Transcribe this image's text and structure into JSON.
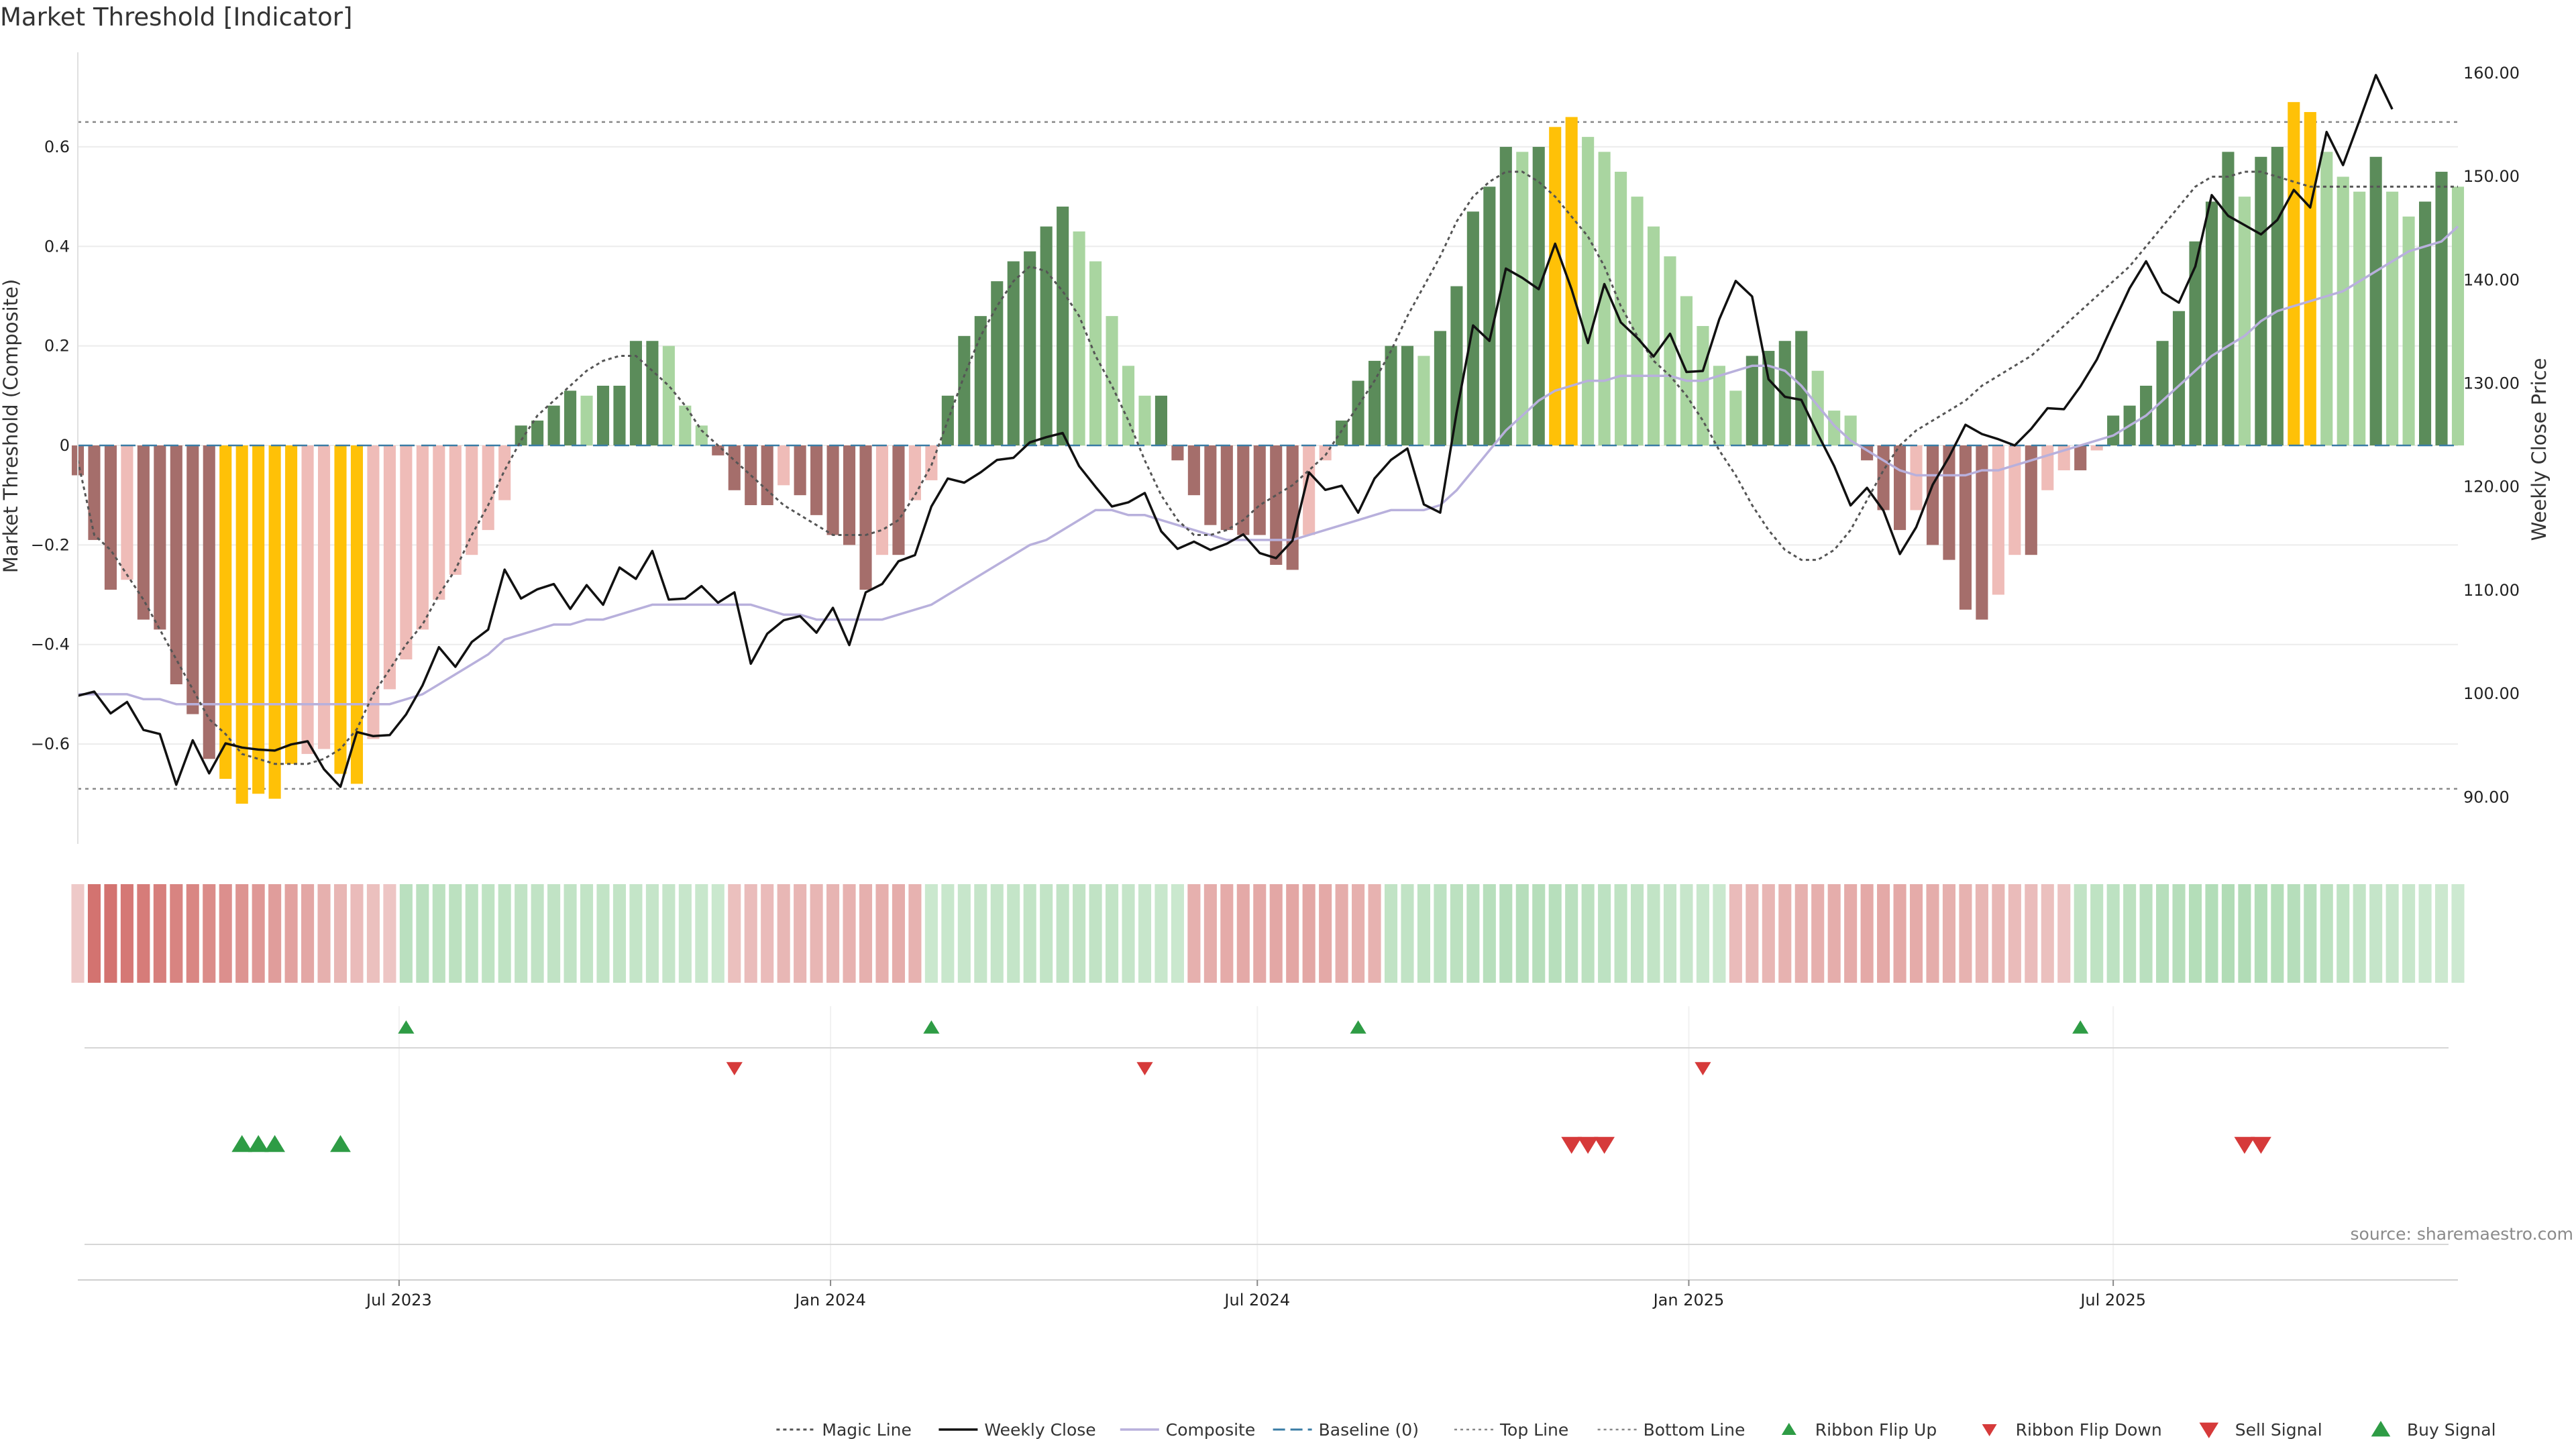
{
  "title": "Market Threshold [Indicator]",
  "source": "source: sharemaestro.com",
  "colors": {
    "strong_pos": "#5b8c5a",
    "weak_pos": "#a9d5a0",
    "strong_neg": "#a56e6b",
    "weak_neg": "#efbcb8",
    "extreme": "#ffc107",
    "price": "#111111",
    "composite": "#b8b0dc",
    "magic": "#555555",
    "baseline": "#3a7ca5",
    "threshold": "#888888",
    "buy": "#2e9c45",
    "sell": "#d63a3a"
  },
  "chart_data": {
    "type": "bar",
    "title": "Market Threshold [Indicator]",
    "ylabel": "Market Threshold (Composite)",
    "y2label": "Weekly Close Price",
    "ylim": [
      -0.79,
      0.79
    ],
    "y2lim": [
      86,
      162
    ],
    "y_ticks": [
      -0.6,
      -0.4,
      -0.2,
      0,
      0.2,
      0.4,
      0.6
    ],
    "y_tick_labels": [
      "−0.6",
      "−0.4",
      "−0.2",
      "0",
      "0.2",
      "0.4",
      "0.6"
    ],
    "y2_ticks": [
      90,
      100,
      110,
      120,
      130,
      140,
      150,
      160
    ],
    "y2_tick_labels": [
      "90.00",
      "100.00",
      "110.00",
      "120.00",
      "130.00",
      "140.00",
      "150.00",
      "160.00"
    ],
    "x_start": "2023-02-14",
    "x_end": "2025-11-25",
    "x_ticks": [
      {
        "date": "2023-07-01",
        "label": "Jul 2023"
      },
      {
        "date": "2024-01-01",
        "label": "Jan 2024"
      },
      {
        "date": "2024-07-01",
        "label": "Jul 2024"
      },
      {
        "date": "2025-01-01",
        "label": "Jan 2025"
      },
      {
        "date": "2025-07-01",
        "label": "Jul 2025"
      }
    ],
    "top_line": 0.65,
    "bottom_line": -0.69,
    "weeks": [
      "2023-02-14",
      "2023-02-21",
      "2023-02-28",
      "2023-03-07",
      "2023-03-14",
      "2023-03-21",
      "2023-03-28",
      "2023-04-04",
      "2023-04-11",
      "2023-04-18",
      "2023-04-25",
      "2023-05-02",
      "2023-05-09",
      "2023-05-16",
      "2023-05-23",
      "2023-05-30",
      "2023-06-06",
      "2023-06-13",
      "2023-06-20",
      "2023-06-27",
      "2023-07-04",
      "2023-07-11",
      "2023-07-18",
      "2023-07-25",
      "2023-08-01",
      "2023-08-08",
      "2023-08-15",
      "2023-08-22",
      "2023-08-29",
      "2023-09-05",
      "2023-09-12",
      "2023-09-19",
      "2023-09-26",
      "2023-10-03",
      "2023-10-10",
      "2023-10-17",
      "2023-10-24",
      "2023-10-31",
      "2023-11-07",
      "2023-11-14",
      "2023-11-21",
      "2023-11-28",
      "2023-12-05",
      "2023-12-12",
      "2023-12-19",
      "2023-12-26",
      "2024-01-02",
      "2024-01-09",
      "2024-01-16",
      "2024-01-23",
      "2024-01-30",
      "2024-02-06",
      "2024-02-13",
      "2024-02-20",
      "2024-02-27",
      "2024-03-05",
      "2024-03-12",
      "2024-03-19",
      "2024-03-26",
      "2024-04-02",
      "2024-04-09",
      "2024-04-16",
      "2024-04-23",
      "2024-04-30",
      "2024-05-07",
      "2024-05-14",
      "2024-05-21",
      "2024-05-28",
      "2024-06-04",
      "2024-06-11",
      "2024-06-18",
      "2024-06-25",
      "2024-07-02",
      "2024-07-09",
      "2024-07-16",
      "2024-07-23",
      "2024-07-30",
      "2024-08-06",
      "2024-08-13",
      "2024-08-20",
      "2024-08-27",
      "2024-09-03",
      "2024-09-10",
      "2024-09-17",
      "2024-09-24",
      "2024-10-01",
      "2024-10-08",
      "2024-10-15",
      "2024-10-22",
      "2024-10-29",
      "2024-11-05",
      "2024-11-12",
      "2024-11-19",
      "2024-11-26",
      "2024-12-03",
      "2024-12-10",
      "2024-12-17",
      "2024-12-24",
      "2024-12-31",
      "2025-01-07",
      "2025-01-14",
      "2025-01-21",
      "2025-01-28",
      "2025-02-04",
      "2025-02-11",
      "2025-02-18",
      "2025-02-25",
      "2025-03-04",
      "2025-03-11",
      "2025-03-18",
      "2025-03-25",
      "2025-04-01",
      "2025-04-08",
      "2025-04-15",
      "2025-04-22",
      "2025-04-29",
      "2025-05-06",
      "2025-05-13",
      "2025-05-20",
      "2025-05-27",
      "2025-06-03",
      "2025-06-10",
      "2025-06-17",
      "2025-06-24",
      "2025-07-01",
      "2025-07-08",
      "2025-07-15",
      "2025-07-22",
      "2025-07-29",
      "2025-08-05",
      "2025-08-12",
      "2025-08-19",
      "2025-08-26",
      "2025-09-02",
      "2025-09-09",
      "2025-09-16",
      "2025-09-23",
      "2025-09-30",
      "2025-10-07",
      "2025-10-14",
      "2025-10-21",
      "2025-10-28",
      "2025-11-04",
      "2025-11-11",
      "2025-11-18",
      "2025-11-25"
    ],
    "composite_bars": [
      -0.06,
      -0.19,
      -0.29,
      -0.27,
      -0.35,
      -0.37,
      -0.48,
      -0.54,
      -0.63,
      -0.67,
      -0.72,
      -0.7,
      -0.71,
      -0.64,
      -0.62,
      -0.61,
      -0.66,
      -0.68,
      -0.59,
      -0.49,
      -0.43,
      -0.37,
      -0.31,
      -0.26,
      -0.22,
      -0.17,
      -0.11,
      0.04,
      0.05,
      0.08,
      0.11,
      0.1,
      0.12,
      0.12,
      0.21,
      0.21,
      0.2,
      0.08,
      0.04,
      -0.02,
      -0.09,
      -0.12,
      -0.12,
      -0.08,
      -0.1,
      -0.14,
      -0.18,
      -0.2,
      -0.29,
      -0.22,
      -0.22,
      -0.11,
      -0.07,
      0.1,
      0.22,
      0.26,
      0.33,
      0.37,
      0.39,
      0.44,
      0.48,
      0.43,
      0.37,
      0.26,
      0.16,
      0.1,
      0.1,
      -0.03,
      -0.1,
      -0.16,
      -0.17,
      -0.18,
      -0.18,
      -0.24,
      -0.25,
      -0.18,
      -0.03,
      0.05,
      0.13,
      0.17,
      0.2,
      0.2,
      0.18,
      0.23,
      0.32,
      0.47,
      0.52,
      0.6,
      0.59,
      0.6,
      0.64,
      0.66,
      0.62,
      0.59,
      0.55,
      0.5,
      0.44,
      0.38,
      0.3,
      0.24,
      0.16,
      0.11,
      0.18,
      0.19,
      0.21,
      0.23,
      0.15,
      0.07,
      0.06,
      -0.03,
      -0.13,
      -0.17,
      -0.13,
      -0.2,
      -0.23,
      -0.33,
      -0.35,
      -0.3,
      -0.22,
      -0.22,
      -0.09,
      -0.05,
      -0.05,
      -0.01,
      0.06,
      0.08,
      0.12,
      0.21,
      0.27,
      0.41,
      0.49,
      0.59,
      0.5,
      0.58,
      0.6,
      0.69,
      0.67,
      0.59,
      0.54,
      0.51,
      0.58,
      0.51,
      0.46,
      0.49,
      0.55,
      0.52
    ],
    "weekly_close": [
      99.8,
      100.2,
      98.1,
      99.2,
      96.5,
      96.1,
      91.2,
      95.5,
      92.3,
      95.2,
      94.8,
      94.6,
      94.5,
      95.1,
      95.4,
      92.7,
      91.0,
      96.3,
      95.9,
      96.0,
      98.0,
      100.8,
      104.5,
      102.6,
      105.0,
      106.2,
      112.0,
      109.2,
      110.1,
      110.6,
      108.2,
      110.5,
      108.6,
      112.2,
      111.1,
      113.8,
      109.1,
      109.2,
      110.4,
      108.8,
      109.8,
      102.9,
      105.8,
      107.1,
      107.5,
      105.9,
      108.3,
      104.7,
      109.8,
      110.6,
      112.8,
      113.4,
      118.1,
      120.8,
      120.4,
      121.4,
      122.6,
      122.8,
      124.3,
      124.8,
      125.2,
      122.0,
      120.0,
      118.1,
      118.5,
      119.4,
      115.7,
      114.0,
      114.7,
      113.9,
      114.5,
      115.4,
      113.6,
      113.1,
      114.8,
      121.4,
      119.7,
      120.1,
      117.5,
      120.8,
      122.6,
      123.7,
      118.3,
      117.5,
      127.2,
      135.6,
      134.1,
      141.1,
      140.2,
      139.1,
      143.5,
      139.1,
      133.9,
      139.6,
      135.9,
      134.4,
      132.6,
      134.8,
      131.1,
      131.2,
      136.2,
      139.9,
      138.4,
      130.4,
      128.7,
      128.4,
      125.1,
      122.0,
      118.2,
      119.9,
      117.7,
      113.5,
      116.1,
      120.2,
      122.9,
      126.0,
      125.1,
      124.6,
      124.0,
      125.6,
      127.6,
      127.5,
      129.7,
      132.3,
      135.8,
      139.2,
      141.8,
      138.8,
      137.8,
      141.3,
      148.2,
      146.2,
      145.3,
      144.4,
      145.8,
      148.7,
      147.0,
      154.3,
      151.1,
      155.4,
      159.8,
      156.5
    ],
    "composite_line": [
      -0.5,
      -0.5,
      -0.5,
      -0.5,
      -0.51,
      -0.51,
      -0.52,
      -0.52,
      -0.52,
      -0.52,
      -0.52,
      -0.52,
      -0.52,
      -0.52,
      -0.52,
      -0.52,
      -0.52,
      -0.52,
      -0.52,
      -0.52,
      -0.51,
      -0.5,
      -0.48,
      -0.46,
      -0.44,
      -0.42,
      -0.39,
      -0.38,
      -0.37,
      -0.36,
      -0.36,
      -0.35,
      -0.35,
      -0.34,
      -0.33,
      -0.32,
      -0.32,
      -0.32,
      -0.32,
      -0.32,
      -0.32,
      -0.32,
      -0.33,
      -0.34,
      -0.34,
      -0.35,
      -0.35,
      -0.35,
      -0.35,
      -0.35,
      -0.34,
      -0.33,
      -0.32,
      -0.3,
      -0.28,
      -0.26,
      -0.24,
      -0.22,
      -0.2,
      -0.19,
      -0.17,
      -0.15,
      -0.13,
      -0.13,
      -0.14,
      -0.14,
      -0.15,
      -0.16,
      -0.17,
      -0.18,
      -0.19,
      -0.19,
      -0.19,
      -0.19,
      -0.19,
      -0.18,
      -0.17,
      -0.16,
      -0.15,
      -0.14,
      -0.13,
      -0.13,
      -0.13,
      -0.12,
      -0.09,
      -0.05,
      -0.01,
      0.03,
      0.06,
      0.09,
      0.11,
      0.12,
      0.13,
      0.13,
      0.14,
      0.14,
      0.14,
      0.14,
      0.13,
      0.13,
      0.14,
      0.15,
      0.16,
      0.16,
      0.15,
      0.12,
      0.08,
      0.04,
      0.01,
      -0.01,
      -0.03,
      -0.05,
      -0.06,
      -0.06,
      -0.06,
      -0.06,
      -0.05,
      -0.05,
      -0.04,
      -0.03,
      -0.02,
      -0.01,
      0.0,
      0.01,
      0.02,
      0.04,
      0.06,
      0.09,
      0.12,
      0.15,
      0.18,
      0.2,
      0.22,
      0.25,
      0.27,
      0.28,
      0.29,
      0.3,
      0.31,
      0.33,
      0.35,
      0.37,
      0.39,
      0.4,
      0.41,
      0.44
    ],
    "magic_line": [
      -0.03,
      -0.18,
      -0.21,
      -0.26,
      -0.31,
      -0.37,
      -0.43,
      -0.49,
      -0.55,
      -0.58,
      -0.62,
      -0.63,
      -0.64,
      -0.64,
      -0.64,
      -0.63,
      -0.61,
      -0.57,
      -0.5,
      -0.45,
      -0.4,
      -0.36,
      -0.3,
      -0.25,
      -0.18,
      -0.12,
      -0.05,
      0.01,
      0.06,
      0.09,
      0.12,
      0.15,
      0.17,
      0.18,
      0.18,
      0.15,
      0.12,
      0.08,
      0.03,
      0.0,
      -0.03,
      -0.06,
      -0.09,
      -0.12,
      -0.14,
      -0.16,
      -0.18,
      -0.18,
      -0.18,
      -0.17,
      -0.15,
      -0.1,
      -0.04,
      0.05,
      0.14,
      0.22,
      0.28,
      0.33,
      0.36,
      0.35,
      0.31,
      0.26,
      0.18,
      0.12,
      0.05,
      -0.03,
      -0.1,
      -0.15,
      -0.18,
      -0.18,
      -0.17,
      -0.15,
      -0.12,
      -0.1,
      -0.08,
      -0.05,
      -0.02,
      0.03,
      0.08,
      0.13,
      0.19,
      0.26,
      0.32,
      0.38,
      0.45,
      0.5,
      0.53,
      0.55,
      0.55,
      0.53,
      0.5,
      0.46,
      0.42,
      0.36,
      0.28,
      0.22,
      0.17,
      0.14,
      0.1,
      0.05,
      -0.01,
      -0.06,
      -0.12,
      -0.17,
      -0.21,
      -0.23,
      -0.23,
      -0.21,
      -0.17,
      -0.11,
      -0.05,
      0.0,
      0.03,
      0.05,
      0.07,
      0.09,
      0.12,
      0.14,
      0.16,
      0.18,
      0.21,
      0.24,
      0.27,
      0.3,
      0.33,
      0.36,
      0.4,
      0.44,
      0.48,
      0.52,
      0.54,
      0.54,
      0.55,
      0.55,
      0.54,
      0.53,
      0.52,
      0.52,
      0.52,
      0.52,
      0.52,
      0.52,
      0.52,
      0.52,
      0.52,
      0.52
    ],
    "ribbon": [
      0.12,
      0.75,
      0.75,
      0.7,
      0.68,
      0.66,
      0.62,
      0.6,
      0.56,
      0.54,
      0.5,
      0.47,
      0.44,
      0.4,
      0.36,
      0.3,
      0.26,
      0.22,
      0.18,
      0.14,
      -0.45,
      -0.45,
      -0.44,
      -0.43,
      -0.42,
      -0.41,
      -0.4,
      -0.39,
      -0.38,
      -0.38,
      -0.38,
      -0.37,
      -0.36,
      -0.36,
      -0.35,
      -0.34,
      -0.33,
      -0.32,
      -0.3,
      -0.28,
      0.18,
      0.2,
      0.22,
      0.24,
      0.25,
      0.26,
      0.27,
      0.28,
      0.3,
      0.31,
      0.32,
      0.28,
      -0.28,
      -0.3,
      -0.32,
      -0.33,
      -0.34,
      -0.35,
      -0.36,
      -0.37,
      -0.38,
      -0.38,
      -0.38,
      -0.36,
      -0.34,
      -0.32,
      -0.3,
      -0.28,
      0.3,
      0.32,
      0.33,
      0.34,
      0.35,
      0.36,
      0.37,
      0.36,
      0.34,
      0.32,
      0.3,
      0.28,
      -0.38,
      -0.38,
      -0.4,
      -0.42,
      -0.44,
      -0.46,
      -0.48,
      -0.5,
      -0.5,
      -0.5,
      -0.48,
      -0.46,
      -0.44,
      -0.42,
      -0.4,
      -0.38,
      -0.36,
      -0.34,
      -0.32,
      -0.3,
      -0.28,
      0.22,
      0.24,
      0.26,
      0.28,
      0.3,
      0.31,
      0.32,
      0.33,
      0.34,
      0.34,
      0.34,
      0.33,
      0.32,
      0.3,
      0.28,
      0.26,
      0.24,
      0.22,
      0.2,
      0.18,
      0.16,
      -0.38,
      -0.4,
      -0.42,
      -0.44,
      -0.46,
      -0.48,
      -0.5,
      -0.52,
      -0.54,
      -0.55,
      -0.55,
      -0.54,
      -0.52,
      -0.5,
      -0.48,
      -0.44,
      -0.4,
      -0.36,
      -0.34,
      -0.32,
      -0.3,
      -0.28,
      -0.26,
      -0.24
    ],
    "ribbon_flip_up": [
      20,
      52,
      78,
      122
    ],
    "ribbon_flip_down": [
      40,
      65,
      99
    ],
    "buy_signals": [
      10,
      11,
      12,
      16
    ],
    "sell_signals": [
      91,
      92,
      93,
      132,
      133
    ],
    "legend": [
      {
        "key": "magic",
        "label": "Magic Line"
      },
      {
        "key": "close",
        "label": "Weekly Close"
      },
      {
        "key": "composite",
        "label": "Composite"
      },
      {
        "key": "baseline",
        "label": "Baseline (0)"
      },
      {
        "key": "top",
        "label": "Top Line"
      },
      {
        "key": "bottom",
        "label": "Bottom Line"
      },
      {
        "key": "flip_up",
        "label": "Ribbon Flip Up"
      },
      {
        "key": "flip_down",
        "label": "Ribbon Flip Down"
      },
      {
        "key": "sell",
        "label": "Sell Signal"
      },
      {
        "key": "buy",
        "label": "Buy Signal"
      }
    ]
  }
}
